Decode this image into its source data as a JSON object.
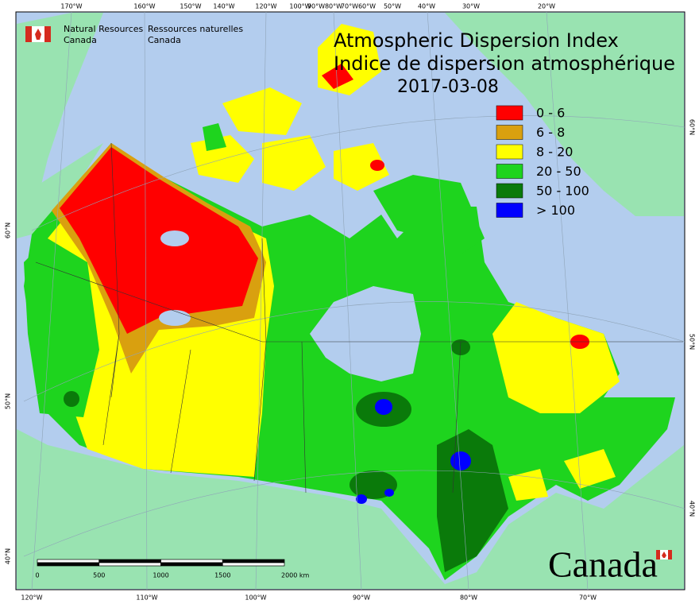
{
  "header": {
    "org_en": [
      "Natural Resources",
      "Canada"
    ],
    "org_fr": [
      "Ressources naturelles",
      "Canada"
    ]
  },
  "title": {
    "en": "Atmospheric Dispersion Index",
    "fr": "Indice de dispersion atmosphérique",
    "date": "2017-03-08"
  },
  "legend": [
    {
      "label": "0 - 6",
      "color": "#ff0000"
    },
    {
      "label": "6 - 8",
      "color": "#d9a00f"
    },
    {
      "label": "8 - 20",
      "color": "#ffff00"
    },
    {
      "label": "20 - 50",
      "color": "#1ed41e"
    },
    {
      "label": "50 - 100",
      "color": "#0a7a0a"
    },
    {
      "label": "> 100",
      "color": "#0000ff"
    }
  ],
  "graticule": {
    "top": [
      "170°W",
      "160°W",
      "150°W",
      "140°W",
      "120°W",
      "100°W",
      "90°W",
      "80°W",
      "70°W",
      "60°W",
      "50°W",
      "40°W",
      "30°W",
      "20°W"
    ],
    "bottom": [
      "120°W",
      "110°W",
      "100°W",
      "90°W",
      "80°W",
      "70°W"
    ],
    "left": [
      "60°N",
      "50°N",
      "40°N"
    ],
    "right": [
      "60°N",
      "50°N",
      "40°N"
    ]
  },
  "scale_bar": [
    "0",
    "500",
    "1000",
    "1500",
    "2000 km"
  ],
  "wordmark": "Canada"
}
